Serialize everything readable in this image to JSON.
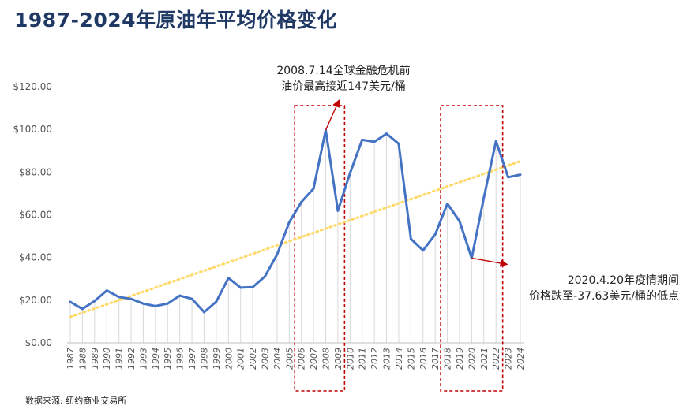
{
  "header": {
    "title": "1987-2024年原油年平均价格变化"
  },
  "footer": {
    "source": "数据来源: 纽约商业交易所"
  },
  "annotations": {
    "crisis_line1": "2008.7.14全球金融危机前",
    "crisis_line2": "油价最高接近147美元/桶",
    "covid_line1": "2020.4.20年疫情期间",
    "covid_line2": "价格跌至-37.63美元/桶的低点"
  },
  "colors": {
    "line": "#4472c4",
    "trend": "#ffd966",
    "box": "#c00000",
    "arrow": "#c00000",
    "drop": "#d9d9d9",
    "title": "#1f3864"
  },
  "chart_data": {
    "type": "line",
    "title": "1987-2024年原油年平均价格变化",
    "xlabel": "",
    "ylabel": "",
    "ylim": [
      0,
      120
    ],
    "yticks": [
      "$0.00",
      "$20.00",
      "$40.00",
      "$60.00",
      "$80.00",
      "$100.00",
      "$120.00"
    ],
    "categories": [
      "1987",
      "1988",
      "1989",
      "1990",
      "1991",
      "1992",
      "1993",
      "1994",
      "1995",
      "1996",
      "1997",
      "1998",
      "1999",
      "2000",
      "2001",
      "2002",
      "2003",
      "2004",
      "2005",
      "2006",
      "2007",
      "2008",
      "2009",
      "2010",
      "2011",
      "2012",
      "2013",
      "2014",
      "2015",
      "2016",
      "2017",
      "2018",
      "2019",
      "2020",
      "2021",
      "2022",
      "2023",
      "2024"
    ],
    "series": [
      {
        "values": [
          19.2,
          15.9,
          19.6,
          24.5,
          21.5,
          20.6,
          18.4,
          17.2,
          18.4,
          22.1,
          20.6,
          14.4,
          19.3,
          30.4,
          25.9,
          26.1,
          31.1,
          41.4,
          56.5,
          66.0,
          72.3,
          99.7,
          61.9,
          79.5,
          95.1,
          94.2,
          98.0,
          93.3,
          48.7,
          43.3,
          50.8,
          65.2,
          57.0,
          39.7,
          68.0,
          94.5,
          77.6,
          78.8
        ]
      }
    ],
    "trendline": {
      "type": "linear",
      "style": "dotted"
    },
    "grid": false,
    "drop_lines": true,
    "highlight_ranges": [
      [
        "2006",
        "2009"
      ],
      [
        "2018",
        "2022"
      ]
    ]
  }
}
